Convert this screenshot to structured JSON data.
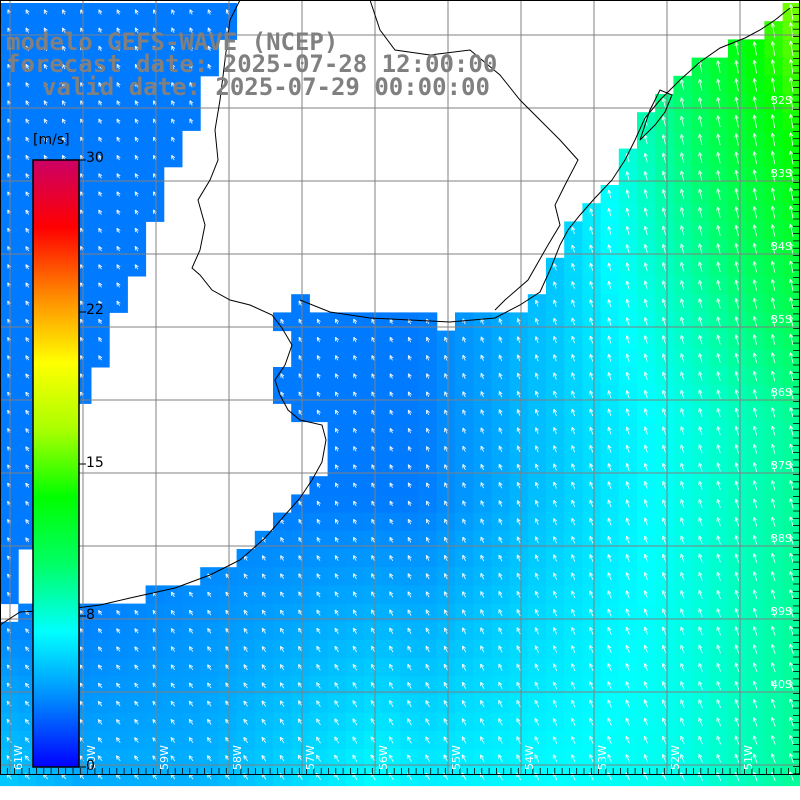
{
  "title": {
    "model": "modelo GEFS-WAVE (NCEP)",
    "forecast": "forecast date: 2025-07-28 12:00:00",
    "valid": "valid date: 2025-07-29 00:00:00"
  },
  "colorbar": {
    "unit": "[m/s]",
    "ticks": [
      "30",
      "22",
      "15",
      "8",
      "0"
    ],
    "colors": [
      "#0000ff",
      "#0088ff",
      "#00ffff",
      "#00ff66",
      "#00ff00",
      "#aaff00",
      "#ffff00",
      "#ff8800",
      "#ff0000",
      "#cc0066"
    ]
  },
  "lat_labels": [
    "32S",
    "33S",
    "34S",
    "35S",
    "36S",
    "37S",
    "38S",
    "39S",
    "40S"
  ],
  "lon_labels": [
    "61W",
    "60W",
    "59W",
    "58W",
    "57W",
    "56W",
    "55W",
    "54W",
    "53W",
    "52W",
    "51W"
  ],
  "colors": {
    "land": "#ffffff",
    "grid": "#808080",
    "coast": "#000000",
    "arrow": "#ffffff"
  }
}
